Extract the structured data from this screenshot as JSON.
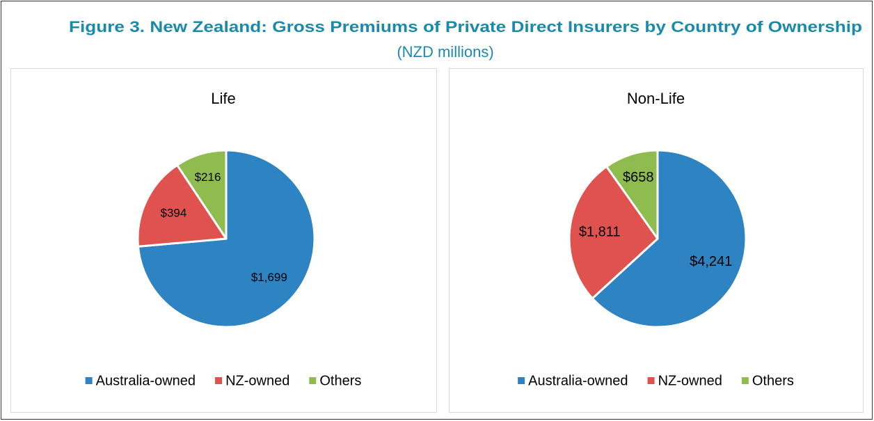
{
  "figure": {
    "title": "Figure 3. New Zealand: Gross Premiums of Private Direct Insurers by Country of Ownership",
    "subtitle": "(NZD millions)"
  },
  "chart_data": [
    {
      "type": "pie",
      "title": "Life",
      "categories": [
        "Australia-owned",
        "NZ-owned",
        "Others"
      ],
      "values": [
        1699,
        394,
        216
      ],
      "value_labels": [
        "$1,699",
        "$394",
        "$216"
      ],
      "colors": [
        "#2e83c2",
        "#e0524f",
        "#8fbc4e"
      ],
      "legend": "bottom"
    },
    {
      "type": "pie",
      "title": "Non-Life",
      "categories": [
        "Australia-owned",
        "NZ-owned",
        "Others"
      ],
      "values": [
        4241,
        1811,
        658
      ],
      "value_labels": [
        "$4,241",
        "$1,811",
        "$658"
      ],
      "colors": [
        "#2e83c2",
        "#e0524f",
        "#8fbc4e"
      ],
      "legend": "bottom"
    }
  ]
}
